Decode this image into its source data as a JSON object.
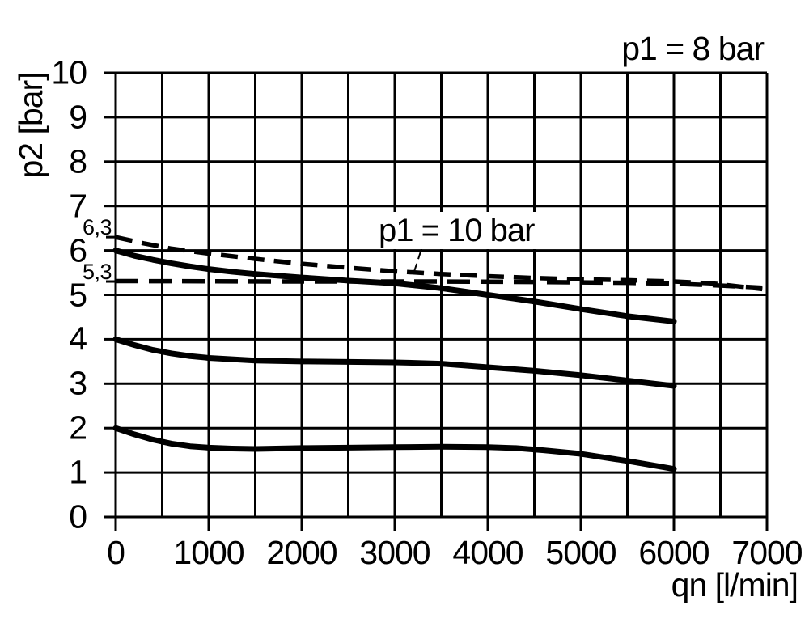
{
  "page": {
    "background": "#ffffff",
    "ink": "#000000"
  },
  "chart_data": {
    "type": "line",
    "title": "p1 = 8 bar",
    "xlabel": "qn [l/min]",
    "ylabel": "p2 [bar]",
    "xlim": [
      0,
      7000
    ],
    "ylim": [
      0,
      10
    ],
    "x_grid_step": 500,
    "y_grid_step": 1,
    "grid": true,
    "x_ticks": [
      {
        "label": "0",
        "value": 0
      },
      {
        "label": "1000",
        "value": 1000
      },
      {
        "label": "2000",
        "value": 2000
      },
      {
        "label": "3000",
        "value": 3000
      },
      {
        "label": "4000",
        "value": 4000
      },
      {
        "label": "5000",
        "value": 5000
      },
      {
        "label": "6000",
        "value": 6000
      },
      {
        "label": "7000",
        "value": 7000
      }
    ],
    "y_ticks": [
      {
        "label": "0",
        "value": 0
      },
      {
        "label": "1",
        "value": 1
      },
      {
        "label": "2",
        "value": 2
      },
      {
        "label": "3",
        "value": 3
      },
      {
        "label": "4",
        "value": 4
      },
      {
        "label": "5",
        "value": 5
      },
      {
        "label": "6",
        "value": 6
      },
      {
        "label": "7",
        "value": 7
      },
      {
        "label": "8",
        "value": 8
      },
      {
        "label": "9",
        "value": 9
      },
      {
        "label": "10",
        "value": 10
      }
    ],
    "extra_y_ticks": [
      {
        "label": "6,3",
        "value": 6.3
      },
      {
        "label": "5,3",
        "value": 5.3
      }
    ],
    "annotation": {
      "text": "p1 = 10 bar",
      "leader_from": [
        3290,
        6.05
      ],
      "leader_to": [
        3200,
        5.47
      ]
    },
    "series": [
      {
        "name": "p1-8bar-setting-6bar",
        "style": "solid",
        "points": [
          [
            0,
            6.0
          ],
          [
            200,
            5.88
          ],
          [
            400,
            5.79
          ],
          [
            600,
            5.71
          ],
          [
            800,
            5.64
          ],
          [
            1000,
            5.58
          ],
          [
            1250,
            5.52
          ],
          [
            1500,
            5.47
          ],
          [
            2000,
            5.39
          ],
          [
            2500,
            5.32
          ],
          [
            3000,
            5.26
          ],
          [
            3500,
            5.15
          ],
          [
            4000,
            5.0
          ],
          [
            4500,
            4.85
          ],
          [
            5000,
            4.68
          ],
          [
            5500,
            4.52
          ],
          [
            6000,
            4.4
          ]
        ]
      },
      {
        "name": "p1-8bar-setting-4bar",
        "style": "solid",
        "points": [
          [
            0,
            4.0
          ],
          [
            200,
            3.87
          ],
          [
            400,
            3.76
          ],
          [
            600,
            3.68
          ],
          [
            800,
            3.62
          ],
          [
            1000,
            3.58
          ],
          [
            1250,
            3.55
          ],
          [
            1500,
            3.52
          ],
          [
            2000,
            3.5
          ],
          [
            2500,
            3.49
          ],
          [
            3000,
            3.48
          ],
          [
            3500,
            3.45
          ],
          [
            4000,
            3.37
          ],
          [
            4500,
            3.29
          ],
          [
            5000,
            3.19
          ],
          [
            5500,
            3.07
          ],
          [
            6000,
            2.95
          ]
        ]
      },
      {
        "name": "p1-8bar-setting-2bar",
        "style": "solid",
        "points": [
          [
            0,
            2.0
          ],
          [
            200,
            1.86
          ],
          [
            400,
            1.74
          ],
          [
            600,
            1.65
          ],
          [
            800,
            1.59
          ],
          [
            1000,
            1.56
          ],
          [
            1250,
            1.54
          ],
          [
            1500,
            1.53
          ],
          [
            2000,
            1.55
          ],
          [
            2500,
            1.56
          ],
          [
            3000,
            1.57
          ],
          [
            3500,
            1.58
          ],
          [
            4000,
            1.57
          ],
          [
            4300,
            1.55
          ],
          [
            4600,
            1.5
          ],
          [
            5000,
            1.42
          ],
          [
            5500,
            1.26
          ],
          [
            6000,
            1.08
          ]
        ]
      },
      {
        "name": "p1-10bar-dashed",
        "style": "dashed",
        "points": [
          [
            0,
            6.3
          ],
          [
            300,
            6.16
          ],
          [
            600,
            6.04
          ],
          [
            1000,
            5.93
          ],
          [
            1500,
            5.81
          ],
          [
            2000,
            5.7
          ],
          [
            2500,
            5.61
          ],
          [
            3000,
            5.53
          ],
          [
            3500,
            5.47
          ],
          [
            4000,
            5.42
          ],
          [
            4500,
            5.38
          ],
          [
            5000,
            5.35
          ],
          [
            5500,
            5.33
          ],
          [
            6000,
            5.3
          ],
          [
            6400,
            5.26
          ],
          [
            6950,
            5.13
          ]
        ]
      },
      {
        "name": "reference-5-3bar-dashed",
        "style": "dashed-long",
        "points": [
          [
            0,
            5.31
          ],
          [
            2000,
            5.3
          ],
          [
            3500,
            5.3
          ],
          [
            4500,
            5.29
          ],
          [
            5500,
            5.27
          ],
          [
            6000,
            5.25
          ],
          [
            6500,
            5.21
          ],
          [
            6950,
            5.16
          ]
        ]
      }
    ]
  }
}
